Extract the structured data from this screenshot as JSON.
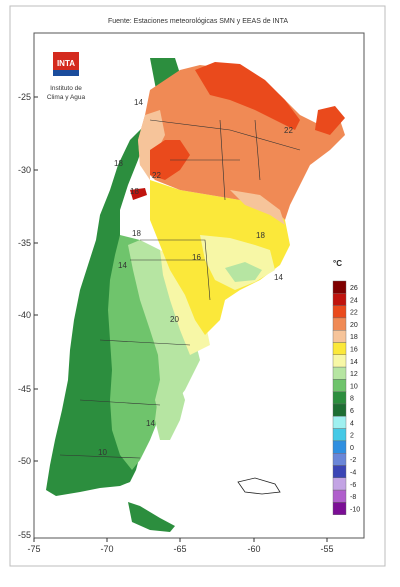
{
  "title": "Fuente: Estaciones meteorológicas SMN y EEAS de INTA",
  "logo": {
    "text": "INTA",
    "caption_line1": "Instituto de",
    "caption_line2": "Clima y Agua"
  },
  "axes": {
    "y_ticks": [
      "-25",
      "-30",
      "-35",
      "-40",
      "-45",
      "-50",
      "-55"
    ],
    "x_ticks": [
      "-75",
      "-70",
      "-65",
      "-60",
      "-55"
    ]
  },
  "legend": {
    "unit": "°C",
    "entries": [
      {
        "label": "26",
        "color": "#7f0000"
      },
      {
        "label": "24",
        "color": "#c0130d"
      },
      {
        "label": "22",
        "color": "#ea4a1c"
      },
      {
        "label": "20",
        "color": "#f08a55"
      },
      {
        "label": "18",
        "color": "#f6c49a"
      },
      {
        "label": "16",
        "color": "#fbe83a"
      },
      {
        "label": "14",
        "color": "#f7f7a6"
      },
      {
        "label": "12",
        "color": "#b6e5a2"
      },
      {
        "label": "10",
        "color": "#6fc46c"
      },
      {
        "label": "8",
        "color": "#2c8e3e"
      },
      {
        "label": "6",
        "color": "#1e6e33"
      },
      {
        "label": "4",
        "color": "#9ff0f0"
      },
      {
        "label": "2",
        "color": "#45c9e6"
      },
      {
        "label": "0",
        "color": "#2f8fe0"
      },
      {
        "label": "-2",
        "color": "#6a86d8"
      },
      {
        "label": "-4",
        "color": "#3b45b5"
      },
      {
        "label": "-6",
        "color": "#c3a4e4"
      },
      {
        "label": "-8",
        "color": "#b05fcc"
      },
      {
        "label": "-10",
        "color": "#7b0e95"
      }
    ]
  },
  "contour_labels": [
    "14",
    "22",
    "18",
    "22",
    "18",
    "18",
    "14",
    "18",
    "14",
    "14",
    "10",
    "16",
    "20"
  ]
}
